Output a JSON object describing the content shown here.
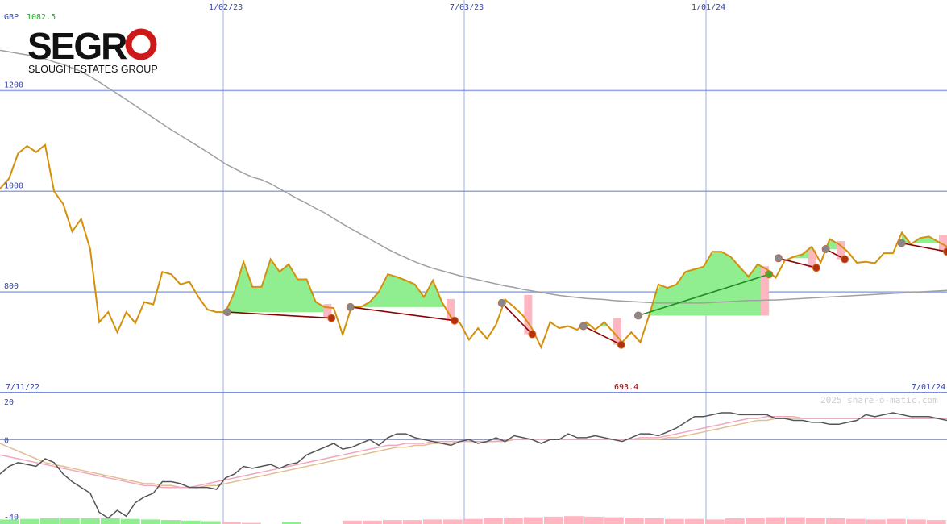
{
  "header": {
    "currency": "GBP",
    "last_price": "1082.5"
  },
  "logo": {
    "word_left": "SEGR",
    "word_o": "O",
    "subtitle": "SLOUGH ESTATES GROUP"
  },
  "labels": {
    "start_date": "7/11/22",
    "end_date": "7/01/24",
    "low_marker": "693.4",
    "watermark": "2025 share-o-matic.com"
  },
  "colors": {
    "price": "#d4900a",
    "ma_long": "#a0a0a0",
    "grid": "#7b8ee0",
    "axis_text": "#3344aa",
    "gain_fill": "#90ee90",
    "loss_fill": "#ffb6c1",
    "trade_loss": "#8b0000",
    "trade_gain": "#228b22",
    "osc": "#555555",
    "osc_fast": "#f4a6c0",
    "osc_slow": "#e0c090"
  },
  "chart_data": [
    {
      "type": "line",
      "panel": "price",
      "currency": "GBP",
      "x_range": [
        "7/11/22",
        "7/01/24"
      ],
      "x_ticks": [
        "1/02/23",
        "7/03/23",
        "1/01/24"
      ],
      "y_ticks": [
        800,
        1000,
        1200
      ],
      "ylim": [
        600,
        1380
      ],
      "grid": true,
      "series": [
        {
          "role": "price",
          "values": [
            1005,
            1025,
            1075,
            1090,
            1078,
            1092,
            1000,
            975,
            920,
            945,
            885,
            740,
            760,
            720,
            760,
            738,
            780,
            775,
            840,
            835,
            815,
            820,
            790,
            765,
            760,
            760,
            800,
            860,
            810,
            810,
            865,
            840,
            855,
            825,
            825,
            780,
            770,
            768,
            715,
            772,
            770,
            780,
            800,
            835,
            830,
            823,
            815,
            790,
            823,
            780,
            750,
            738,
            705,
            728,
            707,
            735,
            785,
            770,
            753,
            727,
            690,
            740,
            728,
            732,
            725,
            740,
            725,
            740,
            720,
            700,
            720,
            700,
            755,
            815,
            808,
            815,
            840,
            845,
            850,
            880,
            880,
            870,
            850,
            830,
            855,
            845,
            828,
            862,
            870,
            875,
            890,
            858,
            905,
            895,
            880,
            858,
            860,
            857,
            877,
            877,
            918,
            895,
            907,
            910,
            900,
            890
          ]
        },
        {
          "role": "moving-average",
          "values": [
            1280,
            1277,
            1274,
            1271,
            1267,
            1263,
            1257,
            1252,
            1245,
            1238,
            1228,
            1217,
            1205,
            1194,
            1182,
            1170,
            1158,
            1146,
            1134,
            1122,
            1111,
            1100,
            1089,
            1078,
            1066,
            1054,
            1045,
            1036,
            1028,
            1023,
            1015,
            1005,
            995,
            985,
            976,
            966,
            957,
            946,
            935,
            925,
            915,
            905,
            895,
            885,
            876,
            868,
            860,
            853,
            847,
            842,
            837,
            832,
            828,
            824,
            820,
            816,
            812,
            809,
            805,
            802,
            799,
            796,
            793,
            791,
            789,
            787,
            786,
            785,
            783,
            782,
            781,
            780,
            779,
            778,
            778,
            778,
            778,
            778,
            778,
            779,
            780,
            781,
            782,
            783,
            783,
            784,
            784,
            785,
            786,
            787,
            788,
            789,
            790,
            791,
            792,
            793,
            794,
            795,
            796,
            797,
            798,
            799,
            800,
            801,
            802,
            803
          ]
        }
      ],
      "min_marker": 693.4,
      "trades": [
        {
          "from": [
            12,
            760
          ],
          "to": [
            17.5,
            748
          ],
          "result": "loss"
        },
        {
          "from": [
            18.5,
            770
          ],
          "to": [
            24,
            743
          ],
          "result": "loss"
        },
        {
          "from": [
            26.5,
            778
          ],
          "to": [
            28.1,
            716
          ],
          "result": "loss"
        },
        {
          "from": [
            30.8,
            732
          ],
          "to": [
            32.8,
            695
          ],
          "result": "loss"
        },
        {
          "from": [
            33.7,
            753
          ],
          "to": [
            40.6,
            835
          ],
          "result": "gain"
        },
        {
          "from": [
            41.1,
            867
          ],
          "to": [
            43.1,
            848
          ],
          "result": "loss"
        },
        {
          "from": [
            43.6,
            885
          ],
          "to": [
            44.6,
            865
          ],
          "result": "loss"
        },
        {
          "from": [
            47.6,
            897
          ],
          "to": [
            50,
            880
          ],
          "result": "loss"
        }
      ]
    },
    {
      "type": "line",
      "panel": "oscillator",
      "y_ticks": [
        -40,
        0,
        20
      ],
      "ylim": [
        -42,
        22
      ],
      "series": [
        {
          "role": "oscillator",
          "values": [
            -18,
            -14,
            -12,
            -13,
            -14,
            -10,
            -12,
            -18,
            -22,
            -25,
            -28,
            -38,
            -41,
            -37,
            -40,
            -33,
            -30,
            -28,
            -22,
            -22,
            -23,
            -25,
            -25,
            -25,
            -26,
            -20,
            -18,
            -14,
            -15,
            -14,
            -13,
            -15,
            -13,
            -12,
            -8,
            -6,
            -4,
            -2,
            -5,
            -4,
            -2,
            0,
            -3,
            1,
            3,
            3,
            1,
            0,
            -1,
            -2,
            -3,
            -1,
            0,
            -2,
            -1,
            1,
            -1,
            2,
            1,
            0,
            -2,
            0,
            0,
            3,
            1,
            1,
            2,
            1,
            0,
            -1,
            1,
            3,
            3,
            2,
            4,
            6,
            9,
            12,
            12,
            13,
            14,
            14,
            13,
            13,
            13,
            13,
            11,
            11,
            10,
            10,
            9,
            9,
            8,
            8,
            9,
            10,
            13,
            12,
            13,
            14,
            13,
            12,
            12,
            12,
            11,
            10
          ]
        },
        {
          "role": "fast-average",
          "values": [
            -8,
            -9,
            -10,
            -11,
            -12,
            -13,
            -14,
            -15,
            -16,
            -17,
            -18,
            -19,
            -20,
            -21,
            -22,
            -23,
            -24,
            -24,
            -25,
            -25,
            -25,
            -25,
            -24,
            -23,
            -22,
            -21,
            -20,
            -19,
            -18,
            -17,
            -16,
            -15,
            -14,
            -13,
            -12,
            -11,
            -10,
            -9,
            -8,
            -7,
            -6,
            -5,
            -4,
            -3,
            -3,
            -2,
            -2,
            -2,
            -1,
            -1,
            -1,
            -1,
            -1,
            -1,
            -1,
            -1,
            0,
            0,
            0,
            0,
            0,
            0,
            0,
            0,
            0,
            0,
            0,
            0,
            0,
            0,
            0,
            1,
            1,
            1,
            2,
            3,
            4,
            5,
            6,
            7,
            8,
            9,
            10,
            11,
            11,
            12,
            12,
            12,
            12,
            11,
            11,
            11,
            11,
            11,
            11,
            11,
            11,
            11,
            11,
            11,
            11,
            11,
            11,
            11,
            11,
            11
          ]
        },
        {
          "role": "slow-average",
          "values": [
            -2,
            -4,
            -6,
            -8,
            -10,
            -12,
            -13,
            -14,
            -15,
            -16,
            -17,
            -18,
            -19,
            -20,
            -21,
            -22,
            -23,
            -23,
            -24,
            -24,
            -25,
            -25,
            -25,
            -24,
            -24,
            -23,
            -22,
            -21,
            -20,
            -19,
            -18,
            -17,
            -16,
            -15,
            -14,
            -13,
            -12,
            -11,
            -10,
            -9,
            -8,
            -7,
            -6,
            -5,
            -4,
            -4,
            -3,
            -3,
            -2,
            -2,
            -2,
            -1,
            -1,
            -1,
            -1,
            -1,
            -1,
            0,
            0,
            0,
            0,
            0,
            0,
            0,
            0,
            0,
            0,
            0,
            0,
            0,
            0,
            0,
            0,
            0,
            1,
            1,
            2,
            3,
            4,
            5,
            6,
            7,
            8,
            9,
            10,
            10,
            11,
            11,
            11,
            11,
            11,
            11,
            11,
            11,
            11,
            11,
            11,
            11,
            11,
            11,
            11,
            11,
            11,
            11,
            11,
            11
          ]
        }
      ],
      "histogram_bars": [
        {
          "x": 0,
          "sign": "pos",
          "value": 0.4
        },
        {
          "x": 1,
          "sign": "pos",
          "value": 0.45
        },
        {
          "x": 2,
          "sign": "pos",
          "value": 0.5
        },
        {
          "x": 3,
          "sign": "pos",
          "value": 0.5
        },
        {
          "x": 4,
          "sign": "pos",
          "value": 0.5
        },
        {
          "x": 5,
          "sign": "pos",
          "value": 0.5
        },
        {
          "x": 6,
          "sign": "pos",
          "value": 0.45
        },
        {
          "x": 7,
          "sign": "pos",
          "value": 0.4
        },
        {
          "x": 8,
          "sign": "pos",
          "value": 0.35
        },
        {
          "x": 9,
          "sign": "pos",
          "value": 0.3
        },
        {
          "x": 10,
          "sign": "pos",
          "value": 0.25
        },
        {
          "x": 11,
          "sign": "neg",
          "value": 0.15
        },
        {
          "x": 12,
          "sign": "neg",
          "value": 0.1
        },
        {
          "x": 14,
          "sign": "pos",
          "value": 0.2
        },
        {
          "x": 17,
          "sign": "neg",
          "value": 0.3
        },
        {
          "x": 18,
          "sign": "neg",
          "value": 0.3
        },
        {
          "x": 19,
          "sign": "neg",
          "value": 0.35
        },
        {
          "x": 20,
          "sign": "neg",
          "value": 0.35
        },
        {
          "x": 21,
          "sign": "neg",
          "value": 0.4
        },
        {
          "x": 22,
          "sign": "neg",
          "value": 0.4
        },
        {
          "x": 23,
          "sign": "neg",
          "value": 0.45
        },
        {
          "x": 24,
          "sign": "neg",
          "value": 0.55
        },
        {
          "x": 25,
          "sign": "neg",
          "value": 0.55
        },
        {
          "x": 26,
          "sign": "neg",
          "value": 0.6
        },
        {
          "x": 27,
          "sign": "neg",
          "value": 0.65
        },
        {
          "x": 28,
          "sign": "neg",
          "value": 0.7
        },
        {
          "x": 29,
          "sign": "neg",
          "value": 0.65
        },
        {
          "x": 30,
          "sign": "neg",
          "value": 0.6
        },
        {
          "x": 31,
          "sign": "neg",
          "value": 0.55
        },
        {
          "x": 32,
          "sign": "neg",
          "value": 0.5
        },
        {
          "x": 33,
          "sign": "neg",
          "value": 0.45
        },
        {
          "x": 34,
          "sign": "neg",
          "value": 0.45
        },
        {
          "x": 35,
          "sign": "neg",
          "value": 0.4
        },
        {
          "x": 36,
          "sign": "neg",
          "value": 0.5
        },
        {
          "x": 37,
          "sign": "neg",
          "value": 0.55
        },
        {
          "x": 38,
          "sign": "neg",
          "value": 0.6
        },
        {
          "x": 39,
          "sign": "neg",
          "value": 0.6
        },
        {
          "x": 40,
          "sign": "neg",
          "value": 0.55
        },
        {
          "x": 41,
          "sign": "neg",
          "value": 0.5
        },
        {
          "x": 42,
          "sign": "neg",
          "value": 0.45
        },
        {
          "x": 43,
          "sign": "neg",
          "value": 0.4
        },
        {
          "x": 44,
          "sign": "neg",
          "value": 0.45
        },
        {
          "x": 45,
          "sign": "neg",
          "value": 0.4
        },
        {
          "x": 46,
          "sign": "neg",
          "value": 0.35
        }
      ]
    }
  ]
}
